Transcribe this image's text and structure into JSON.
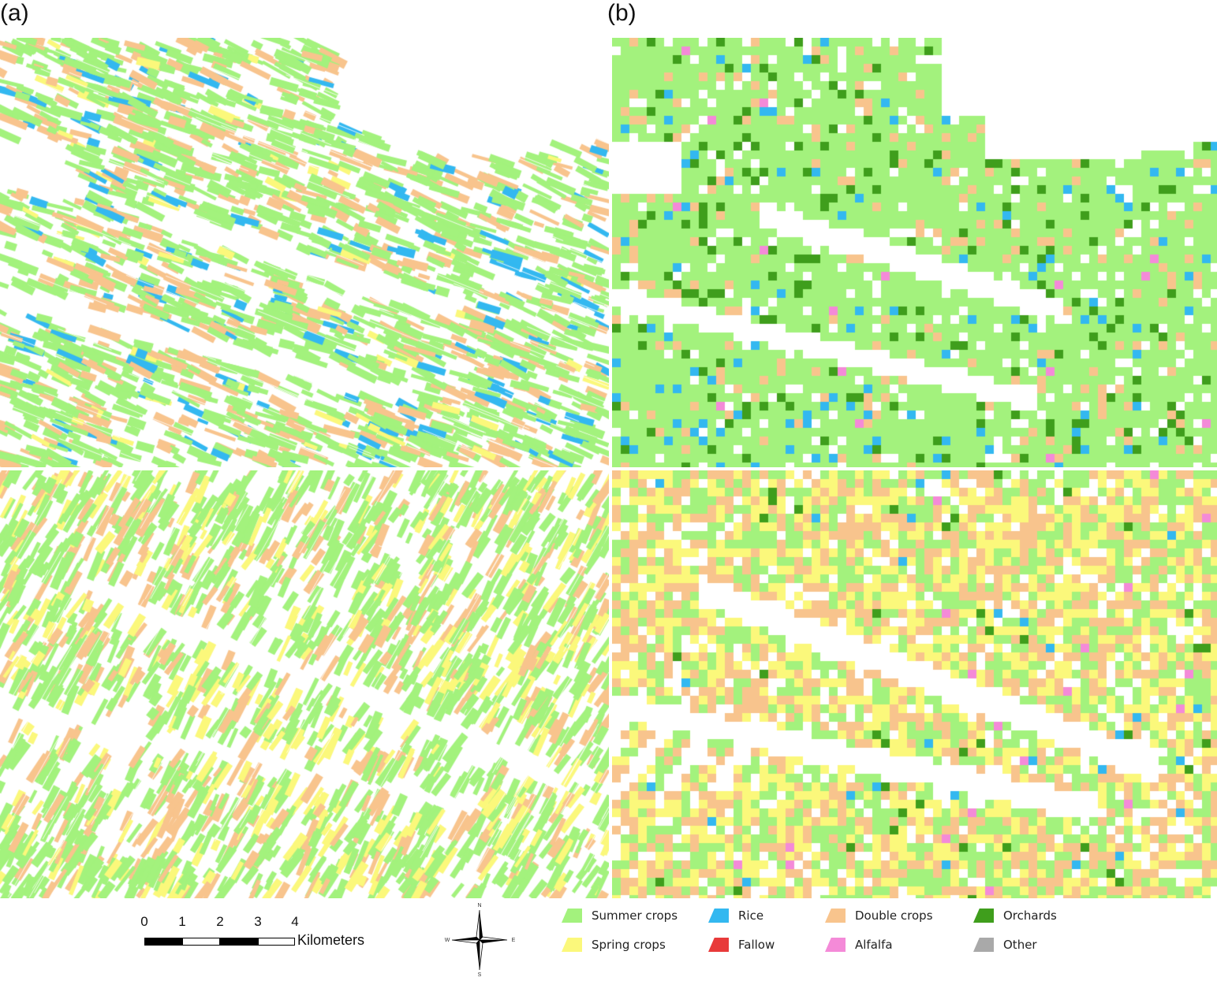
{
  "panels": {
    "a_label": "(a)",
    "b_label": "(b)"
  },
  "colors": {
    "summer": "#a3f27d",
    "spring": "#fbf87b",
    "rice": "#33b8f0",
    "fallow": "#e83a3a",
    "double": "#f8c48d",
    "alfalfa": "#f48ad8",
    "orchards": "#3f9e1c",
    "other": "#a9a9a9"
  },
  "scalebar": {
    "ticks": [
      "0",
      "1",
      "2",
      "3",
      "4"
    ],
    "unit": "Kilometers"
  },
  "compass": {
    "n": "N",
    "s": "S",
    "e": "E",
    "w": "W"
  },
  "legend": [
    {
      "label": "Summer crops",
      "color": "#a3f27d"
    },
    {
      "label": "Spring crops",
      "color": "#fbf87b"
    },
    {
      "label": "Rice",
      "color": "#33b8f0"
    },
    {
      "label": "Fallow",
      "color": "#e83a3a"
    },
    {
      "label": "Double crops",
      "color": "#f8c48d"
    },
    {
      "label": "Alfalfa",
      "color": "#f48ad8"
    },
    {
      "label": "Orchards",
      "color": "#3f9e1c"
    },
    {
      "label": "Other",
      "color": "#a9a9a9"
    }
  ]
}
